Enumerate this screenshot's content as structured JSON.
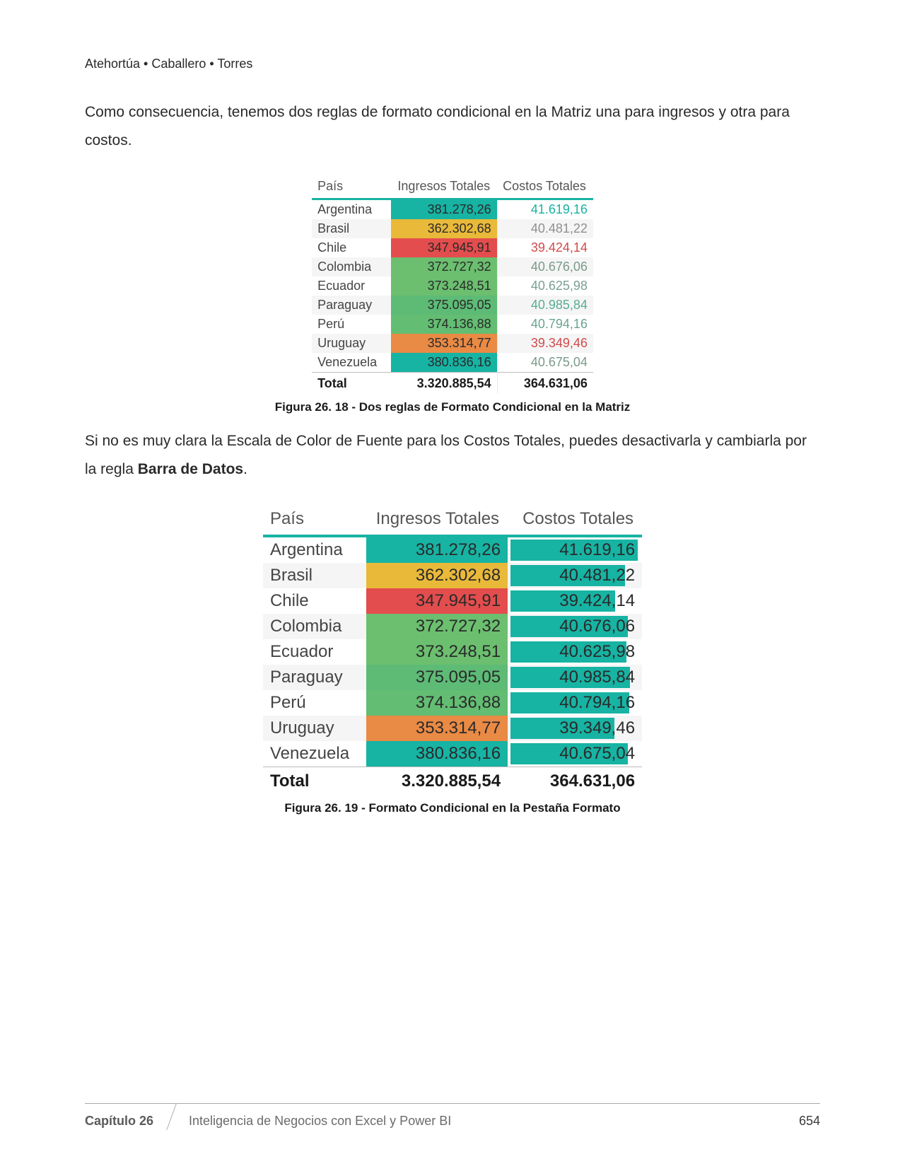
{
  "header": {
    "authors": "Atehortúa • Caballero • Torres"
  },
  "para1": "Como consecuencia, tenemos dos reglas de formato condicional en la Matriz una para ingresos y otra para costos.",
  "para2_prefix": "Si no es muy clara la Escala de Color de Fuente para los Costos Totales, puedes desactivarla y cambiarla por la regla ",
  "para2_bold": "Barra de Datos",
  "para2_suffix": ".",
  "fig1": {
    "caption": "Figura 26. 18 - Dos reglas de Formato Condicional en la Matriz",
    "headers": [
      "País",
      "Ingresos Totales",
      "Costos Totales"
    ],
    "rows": [
      {
        "pais": "Argentina",
        "ingreso": "381.278,26",
        "ing_bg": "#17b3a3",
        "costo": "41.619,16",
        "costo_color": "#17b3a3",
        "alt": false
      },
      {
        "pais": "Brasil",
        "ingreso": "362.302,68",
        "ing_bg": "#e9b93a",
        "costo": "40.481,22",
        "costo_color": "#8f8f8f",
        "alt": true
      },
      {
        "pais": "Chile",
        "ingreso": "347.945,91",
        "ing_bg": "#e34d4d",
        "costo": "39.424,14",
        "costo_color": "#d14b4b",
        "alt": false
      },
      {
        "pais": "Colombia",
        "ingreso": "372.727,32",
        "ing_bg": "#6bbf6f",
        "costo": "40.676,06",
        "costo_color": "#7a9a89",
        "alt": true
      },
      {
        "pais": "Ecuador",
        "ingreso": "373.248,51",
        "ing_bg": "#6bbf6f",
        "costo": "40.625,98",
        "costo_color": "#7aa093",
        "alt": false
      },
      {
        "pais": "Paraguay",
        "ingreso": "375.095,05",
        "ing_bg": "#5dbb76",
        "costo": "40.985,84",
        "costo_color": "#5aac95",
        "alt": true
      },
      {
        "pais": "Perú",
        "ingreso": "374.136,88",
        "ing_bg": "#63bd72",
        "costo": "40.794,16",
        "costo_color": "#6aa590",
        "alt": false
      },
      {
        "pais": "Uruguay",
        "ingreso": "353.314,77",
        "ing_bg": "#e98a45",
        "costo": "39.349,46",
        "costo_color": "#d14b4b",
        "alt": true
      },
      {
        "pais": "Venezuela",
        "ingreso": "380.836,16",
        "ing_bg": "#17b3a3",
        "costo": "40.675,04",
        "costo_color": "#7a9a89",
        "alt": false
      }
    ],
    "total": {
      "label": "Total",
      "ingreso": "3.320.885,54",
      "costo": "364.631,06"
    }
  },
  "fig2": {
    "caption": "Figura 26. 19 - Formato Condicional en la Pestaña Formato",
    "headers": [
      "País",
      "Ingresos Totales",
      "Costos Totales"
    ],
    "bar_color": "#17b3a3",
    "rows": [
      {
        "pais": "Argentina",
        "ingreso": "381.278,26",
        "ing_bg": "#17b3a3",
        "costo": "41.619,16",
        "bar_pct": 100,
        "alt": false
      },
      {
        "pais": "Brasil",
        "ingreso": "362.302,68",
        "ing_bg": "#e9b93a",
        "costo": "40.481,22",
        "bar_pct": 90,
        "alt": true
      },
      {
        "pais": "Chile",
        "ingreso": "347.945,91",
        "ing_bg": "#e34d4d",
        "costo": "39.424,14",
        "bar_pct": 82,
        "alt": false
      },
      {
        "pais": "Colombia",
        "ingreso": "372.727,32",
        "ing_bg": "#6bbf6f",
        "costo": "40.676,06",
        "bar_pct": 92,
        "alt": true
      },
      {
        "pais": "Ecuador",
        "ingreso": "373.248,51",
        "ing_bg": "#6bbf6f",
        "costo": "40.625,98",
        "bar_pct": 91,
        "alt": false
      },
      {
        "pais": "Paraguay",
        "ingreso": "375.095,05",
        "ing_bg": "#5dbb76",
        "costo": "40.985,84",
        "bar_pct": 94,
        "alt": true
      },
      {
        "pais": "Perú",
        "ingreso": "374.136,88",
        "ing_bg": "#63bd72",
        "costo": "40.794,16",
        "bar_pct": 93,
        "alt": false
      },
      {
        "pais": "Uruguay",
        "ingreso": "353.314,77",
        "ing_bg": "#e98a45",
        "costo": "39.349,46",
        "bar_pct": 81,
        "alt": true
      },
      {
        "pais": "Venezuela",
        "ingreso": "380.836,16",
        "ing_bg": "#17b3a3",
        "costo": "40.675,04",
        "bar_pct": 92,
        "alt": false
      }
    ],
    "total": {
      "label": "Total",
      "ingreso": "3.320.885,54",
      "costo": "364.631,06"
    }
  },
  "footer": {
    "chapter": "Capítulo 26",
    "title": "Inteligencia de Negocios con Excel y Power BI",
    "page": "654"
  }
}
